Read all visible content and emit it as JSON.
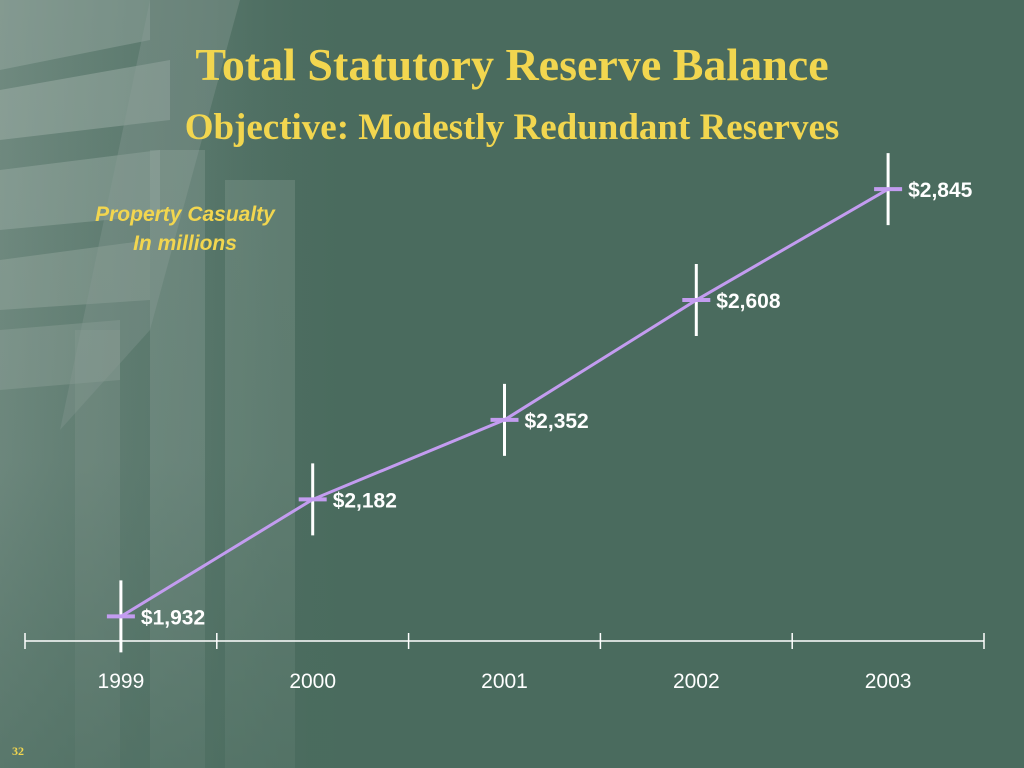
{
  "title": "Total Statutory Reserve Balance",
  "subtitle": "Objective: Modestly Redundant Reserves",
  "note": {
    "line1": "Property Casualty",
    "line2": "In millions"
  },
  "slide_number": "32",
  "colors": {
    "background": "#4a6b5e",
    "title": "#f2d64f",
    "line": "#c39cf0",
    "text": "#ffffff"
  },
  "chart_data": {
    "type": "line",
    "title": "Total Statutory Reserve Balance",
    "subtitle": "Objective: Modestly Redundant Reserves",
    "categories": [
      "1999",
      "2000",
      "2001",
      "2002",
      "2003"
    ],
    "values": [
      1932,
      2182,
      2352,
      2608,
      2845
    ],
    "value_labels": [
      "$1,932",
      "$2,182",
      "$2,352",
      "$2,608",
      "$2,845"
    ],
    "ylim": [
      1700,
      2950
    ],
    "grid": false,
    "legend": "none",
    "marker": "vertical error bar with horizontal tick at value"
  }
}
